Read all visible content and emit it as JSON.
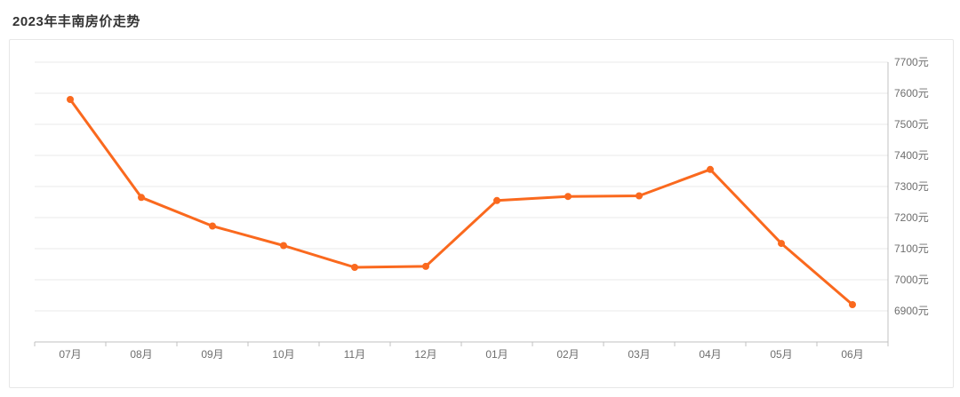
{
  "page": {
    "title": "2023年丰南房价走势"
  },
  "colors": {
    "line": "#fa691e",
    "marker_fill": "#fa691e",
    "grid_line": "#e9e9e9",
    "axis_line": "#c0c0c0",
    "tick_label": "#6e6e6e",
    "title_text": "#333333",
    "card_border": "#e7e7e7",
    "background": "#ffffff"
  },
  "chart_data": {
    "type": "line",
    "title": "2023年丰南房价走势",
    "categories": [
      "07月",
      "08月",
      "09月",
      "10月",
      "11月",
      "12月",
      "01月",
      "02月",
      "03月",
      "04月",
      "05月",
      "06月"
    ],
    "values": [
      7580,
      7265,
      7173,
      7110,
      7040,
      7043,
      7255,
      7268,
      7270,
      7355,
      7117,
      6920
    ],
    "unit": "元",
    "xlabel": "",
    "ylabel": "",
    "ylim": [
      6800,
      7700
    ],
    "ytick_step": 100,
    "ytick_labels": [
      "6900元",
      "7000元",
      "7100元",
      "7200元",
      "7300元",
      "7400元",
      "7500元",
      "7600元",
      "7700元"
    ],
    "y_axis_position": "right",
    "grid": true,
    "legend_position": "none",
    "marker": "circle"
  }
}
